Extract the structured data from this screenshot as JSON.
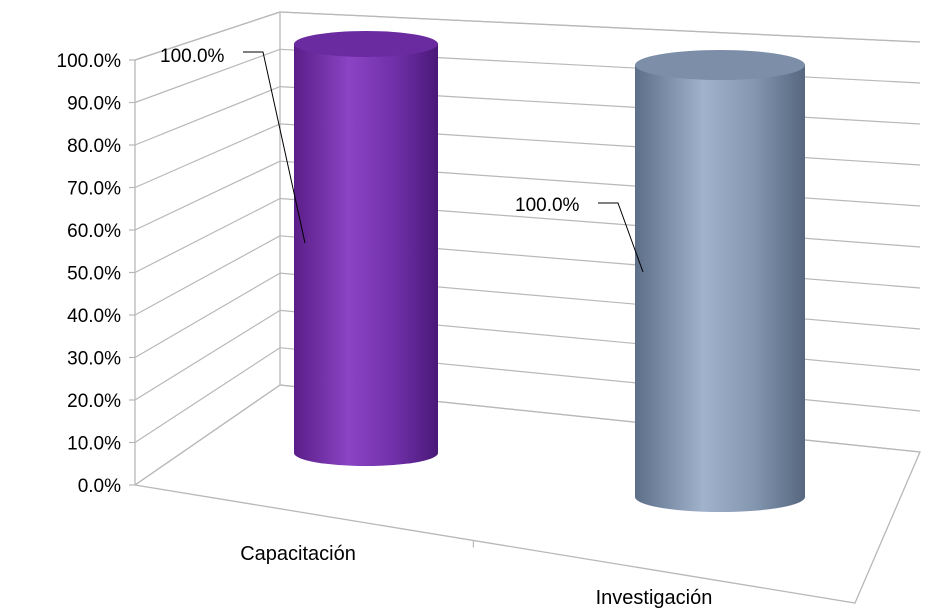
{
  "chart_data": {
    "type": "bar",
    "bar_shape": "cylinder",
    "three_d": true,
    "categories": [
      "Capacitación",
      "Investigación"
    ],
    "values": [
      100.0,
      100.0
    ],
    "data_labels": [
      "100.0%",
      "100.0%"
    ],
    "y_ticks": [
      "0.0%",
      "10.0%",
      "20.0%",
      "30.0%",
      "40.0%",
      "50.0%",
      "60.0%",
      "70.0%",
      "80.0%",
      "90.0%",
      "100.0%"
    ],
    "ylim": [
      0,
      100
    ],
    "grid": true,
    "legend": "none",
    "colors": [
      "#7030a0",
      "#8497b0"
    ]
  }
}
